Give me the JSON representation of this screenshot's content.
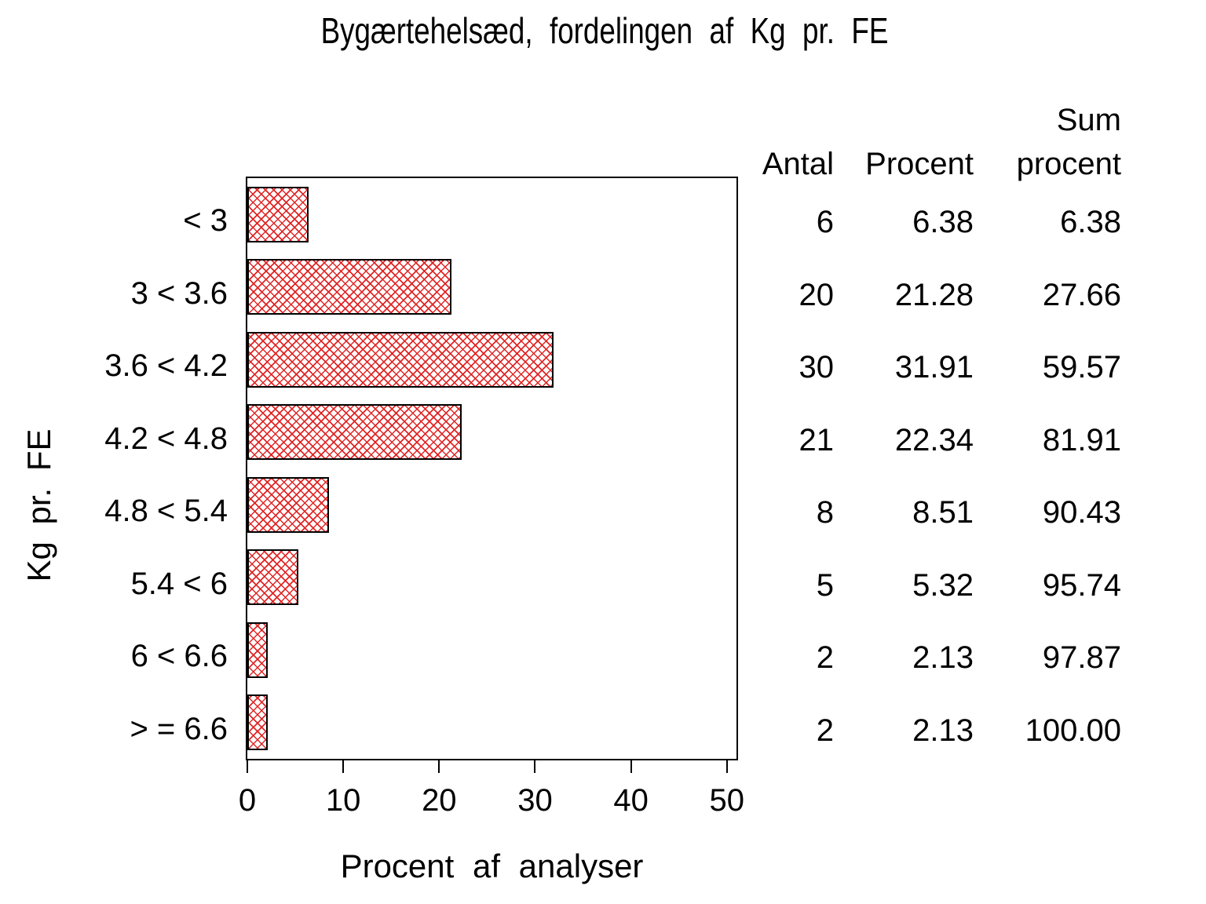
{
  "chart_data": {
    "type": "bar",
    "orientation": "horizontal",
    "title": "Bygærtehelsæd, fordelingen af Kg pr. FE",
    "xlabel": "Procent af analyser",
    "ylabel": "Kg pr. FE",
    "categories": [
      "< 3",
      "3 < 3.6",
      "3.6 < 4.2",
      "4.2 < 4.8",
      "4.8 < 5.4",
      "5.4 < 6",
      "6 < 6.6",
      "> = 6.6"
    ],
    "values": [
      6.38,
      21.28,
      31.91,
      22.34,
      8.51,
      5.32,
      2.13,
      2.13
    ],
    "x_ticks": [
      0,
      10,
      20,
      30,
      40,
      50
    ],
    "xlim": [
      0,
      51
    ],
    "grid": false,
    "legend": "none",
    "bar_pattern": "crosshatch",
    "bar_color": "#e02525",
    "bar_border_color": "#000000",
    "side_table": {
      "col_headers": [
        "Antal",
        "Procent",
        "Sum procent"
      ],
      "header_antal": "Antal",
      "header_procent": "Procent",
      "header_sum_line1": "Sum",
      "header_sum_line2": "procent",
      "rows": [
        [
          "6",
          "6.38",
          "6.38"
        ],
        [
          "20",
          "21.28",
          "27.66"
        ],
        [
          "30",
          "31.91",
          "59.57"
        ],
        [
          "21",
          "22.34",
          "81.91"
        ],
        [
          "8",
          "8.51",
          "90.43"
        ],
        [
          "5",
          "5.32",
          "95.74"
        ],
        [
          "2",
          "2.13",
          "97.87"
        ],
        [
          "2",
          "2.13",
          "100.00"
        ]
      ]
    }
  }
}
